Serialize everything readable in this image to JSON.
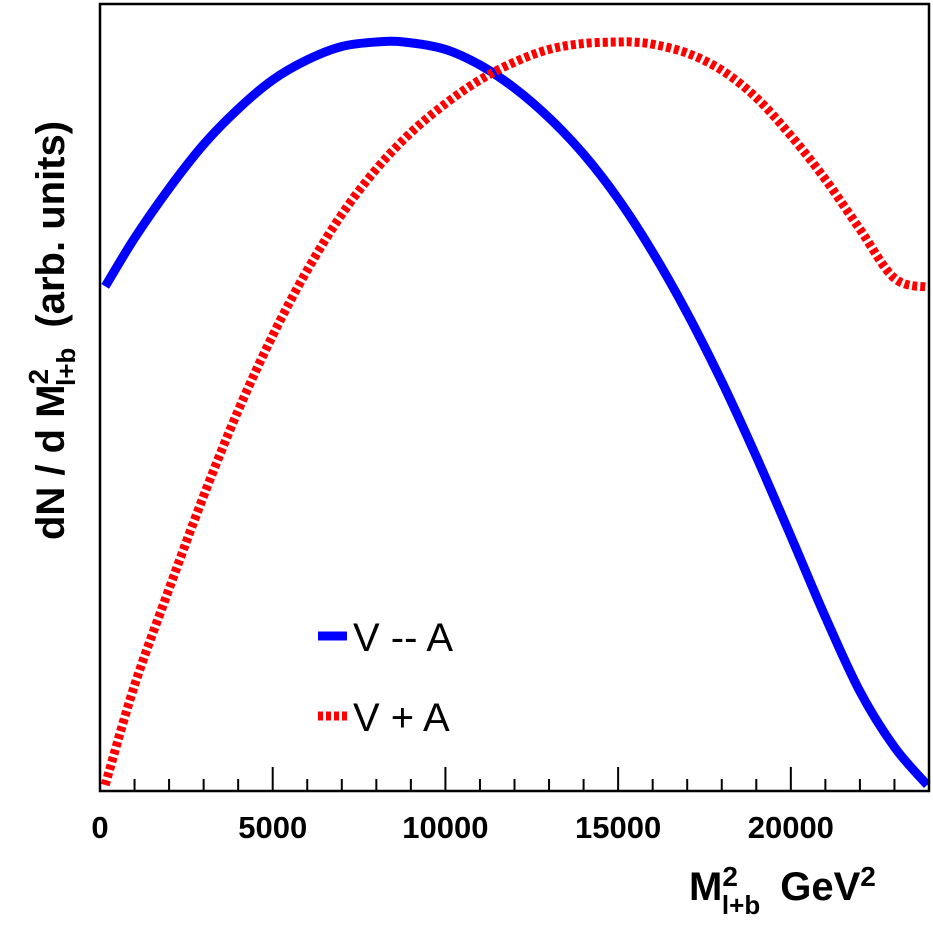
{
  "chart_data": {
    "type": "line",
    "xlabel": {
      "main": "M",
      "sup": "2",
      "sub": "l+b",
      "unit": "GeV",
      "unit_sup": "2"
    },
    "ylabel": {
      "prefix": "dN / d M",
      "sup": "2",
      "sub": "l+b",
      "suffix": "(arb. units)"
    },
    "xlim": [
      0,
      24000
    ],
    "ylim": [
      0,
      1
    ],
    "x_ticks": [
      0,
      5000,
      10000,
      15000,
      20000
    ],
    "x_tick_labels": [
      "0",
      "5000",
      "10000",
      "15000",
      "20000"
    ],
    "y_tick_labels": [],
    "grid": false,
    "legend_position": "bottom-center",
    "series": [
      {
        "name": "V -- A",
        "color": "#0000ff",
        "style": "solid",
        "x": [
          150,
          1000,
          2000,
          3000,
          4000,
          5000,
          6000,
          7000,
          8000,
          8800,
          10000,
          11000,
          12000,
          13000,
          14000,
          15000,
          16000,
          17000,
          18000,
          19000,
          20000,
          21000,
          22000,
          23000,
          23950
        ],
        "y": [
          0.671,
          0.736,
          0.803,
          0.862,
          0.91,
          0.949,
          0.976,
          0.994,
          1.0,
          1.0,
          0.99,
          0.969,
          0.938,
          0.898,
          0.849,
          0.789,
          0.717,
          0.635,
          0.543,
          0.442,
          0.335,
          0.226,
          0.126,
          0.051,
          0.0
        ]
      },
      {
        "name": "V + A",
        "color": "#ff0000",
        "style": "dotted",
        "x": [
          150,
          1000,
          2000,
          3000,
          4000,
          5000,
          6000,
          7000,
          8000,
          9000,
          10000,
          11000,
          12000,
          13000,
          14000,
          15000,
          15400,
          16000,
          17000,
          18000,
          19000,
          20000,
          21000,
          22000,
          23000,
          23950
        ],
        "y": [
          0.0,
          0.134,
          0.264,
          0.389,
          0.504,
          0.605,
          0.693,
          0.768,
          0.829,
          0.878,
          0.917,
          0.949,
          0.973,
          0.99,
          0.998,
          1.0,
          1.0,
          0.997,
          0.985,
          0.962,
          0.925,
          0.874,
          0.815,
          0.748,
          0.682,
          0.67
        ]
      }
    ]
  }
}
